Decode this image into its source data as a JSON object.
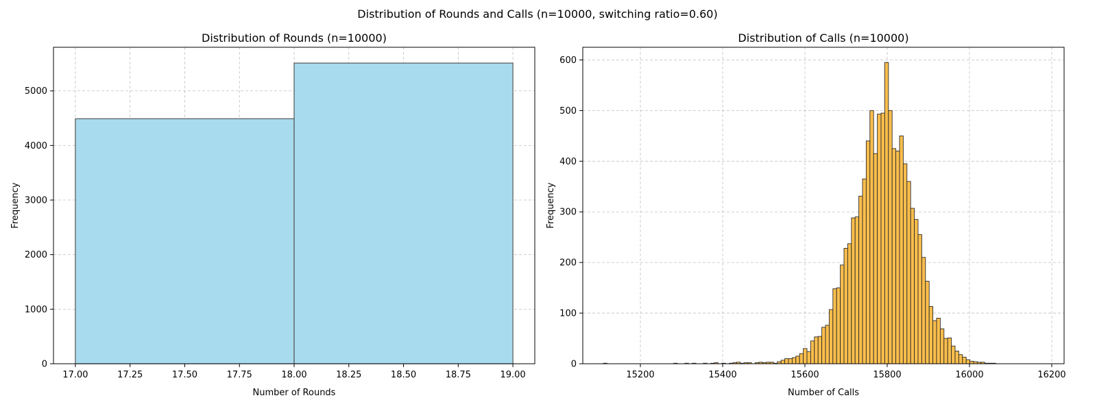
{
  "figure": {
    "suptitle": "Distribution of Rounds and Calls (n=10000, switching ratio=0.60)"
  },
  "chart_data": [
    {
      "type": "bar",
      "title": "Distribution of Rounds (n=10000)",
      "xlabel": "Number of Rounds",
      "ylabel": "Frequency",
      "xlim": [
        16.9,
        19.1
      ],
      "ylim": [
        0,
        5800
      ],
      "xticks": [
        17.0,
        17.25,
        17.5,
        17.75,
        18.0,
        18.25,
        18.5,
        18.75,
        19.0
      ],
      "xtick_labels": [
        "17.00",
        "17.25",
        "17.50",
        "17.75",
        "18.00",
        "18.25",
        "18.50",
        "18.75",
        "19.00"
      ],
      "yticks": [
        0,
        1000,
        2000,
        3000,
        4000,
        5000
      ],
      "ytick_labels": [
        "0",
        "1000",
        "2000",
        "3000",
        "4000",
        "5000"
      ],
      "grid": true,
      "bar_color": "#a8dbee",
      "edge_color": "#555555",
      "bins": [
        {
          "x0": 17.0,
          "x1": 18.0,
          "count": 4490
        },
        {
          "x0": 18.0,
          "x1": 19.0,
          "count": 5510
        }
      ]
    },
    {
      "type": "bar",
      "title": "Distribution of Calls (n=10000)",
      "xlabel": "Number of Calls",
      "ylabel": "Frequency",
      "xlim": [
        15070,
        15230
      ],
      "ylim": [
        0,
        625
      ],
      "xticks": [
        15200,
        15400,
        15600,
        15800,
        16000,
        16200
      ],
      "xtick_labels": [
        "15200",
        "15400",
        "15600",
        "15800",
        "16000",
        "16200"
      ],
      "yticks": [
        0,
        100,
        200,
        300,
        400,
        500,
        600
      ],
      "ytick_labels": [
        "0",
        "100",
        "200",
        "300",
        "400",
        "500",
        "600"
      ],
      "grid": true,
      "bar_color": "#fbbb42",
      "edge_color": "#2b2b2b",
      "bin_start": 15110,
      "bin_width": 9.0,
      "counts": [
        1,
        0,
        0,
        0,
        0,
        0,
        0,
        0,
        0,
        0,
        0,
        0,
        0,
        0,
        0,
        0,
        0,
        0,
        0,
        1,
        0,
        0,
        1,
        0,
        1,
        0,
        0,
        1,
        0,
        1,
        2,
        0,
        1,
        0,
        1,
        2,
        3,
        1,
        2,
        2,
        0,
        2,
        3,
        2,
        3,
        3,
        1,
        4,
        7,
        10,
        10,
        12,
        15,
        20,
        30,
        24,
        45,
        53,
        54,
        72,
        76,
        107,
        148,
        150,
        195,
        228,
        237,
        288,
        290,
        331,
        365,
        440,
        500,
        415,
        493,
        495,
        595,
        500,
        425,
        420,
        450,
        395,
        360,
        307,
        285,
        255,
        210,
        163,
        113,
        85,
        90,
        69,
        50,
        51,
        35,
        25,
        18,
        13,
        8,
        5,
        4,
        3,
        3,
        1,
        1,
        1
      ]
    }
  ]
}
